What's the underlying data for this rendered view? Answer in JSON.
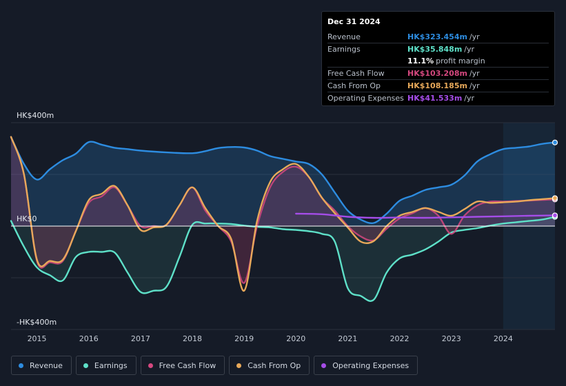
{
  "chart_data": {
    "type": "line",
    "y_unit_labels": {
      "top": "HK$400m",
      "zero": "HK$0",
      "bottom": "-HK$400m"
    },
    "ylim": [
      -400,
      400
    ],
    "xlim": [
      2014.5,
      2025.0
    ],
    "x_ticks": [
      2015,
      2016,
      2017,
      2018,
      2019,
      2020,
      2021,
      2022,
      2023,
      2024
    ],
    "x_tick_labels": [
      "2015",
      "2016",
      "2017",
      "2018",
      "2019",
      "2020",
      "2021",
      "2022",
      "2023",
      "2024"
    ],
    "forecast_start": 2024.0,
    "series": [
      {
        "key": "revenue",
        "name": "Revenue",
        "color": "#2d8ce0",
        "fill": true,
        "points": [
          [
            2014.5,
            345
          ],
          [
            2014.75,
            240
          ],
          [
            2015.0,
            180
          ],
          [
            2015.25,
            220
          ],
          [
            2015.5,
            255
          ],
          [
            2015.75,
            280
          ],
          [
            2016.0,
            325
          ],
          [
            2016.25,
            315
          ],
          [
            2016.5,
            303
          ],
          [
            2016.75,
            298
          ],
          [
            2017.0,
            292
          ],
          [
            2017.5,
            285
          ],
          [
            2018.0,
            282
          ],
          [
            2018.25,
            290
          ],
          [
            2018.5,
            302
          ],
          [
            2018.75,
            306
          ],
          [
            2019.0,
            304
          ],
          [
            2019.25,
            292
          ],
          [
            2019.5,
            271
          ],
          [
            2019.75,
            260
          ],
          [
            2020.0,
            250
          ],
          [
            2020.25,
            240
          ],
          [
            2020.5,
            200
          ],
          [
            2020.75,
            130
          ],
          [
            2021.0,
            60
          ],
          [
            2021.25,
            25
          ],
          [
            2021.5,
            12
          ],
          [
            2021.75,
            48
          ],
          [
            2022.0,
            98
          ],
          [
            2022.25,
            118
          ],
          [
            2022.5,
            140
          ],
          [
            2022.75,
            150
          ],
          [
            2023.0,
            160
          ],
          [
            2023.25,
            195
          ],
          [
            2023.5,
            250
          ],
          [
            2023.75,
            278
          ],
          [
            2024.0,
            298
          ],
          [
            2024.25,
            303
          ],
          [
            2024.5,
            308
          ],
          [
            2024.75,
            318
          ],
          [
            2025.0,
            323.454
          ]
        ]
      },
      {
        "key": "earnings",
        "name": "Earnings",
        "color": "#5ee0c8",
        "fill": true,
        "points": [
          [
            2014.5,
            20
          ],
          [
            2014.75,
            -80
          ],
          [
            2015.0,
            -160
          ],
          [
            2015.25,
            -190
          ],
          [
            2015.5,
            -210
          ],
          [
            2015.75,
            -120
          ],
          [
            2016.0,
            -100
          ],
          [
            2016.25,
            -100
          ],
          [
            2016.5,
            -102
          ],
          [
            2016.75,
            -180
          ],
          [
            2017.0,
            -255
          ],
          [
            2017.25,
            -250
          ],
          [
            2017.5,
            -235
          ],
          [
            2017.75,
            -120
          ],
          [
            2018.0,
            5
          ],
          [
            2018.25,
            10
          ],
          [
            2018.5,
            10
          ],
          [
            2018.75,
            8
          ],
          [
            2019.0,
            2
          ],
          [
            2019.25,
            -3
          ],
          [
            2019.5,
            -5
          ],
          [
            2019.75,
            -12
          ],
          [
            2020.0,
            -15
          ],
          [
            2020.25,
            -20
          ],
          [
            2020.5,
            -30
          ],
          [
            2020.75,
            -60
          ],
          [
            2021.0,
            -240
          ],
          [
            2021.25,
            -270
          ],
          [
            2021.5,
            -285
          ],
          [
            2021.75,
            -180
          ],
          [
            2022.0,
            -125
          ],
          [
            2022.25,
            -110
          ],
          [
            2022.5,
            -90
          ],
          [
            2022.75,
            -60
          ],
          [
            2023.0,
            -25
          ],
          [
            2023.25,
            -15
          ],
          [
            2023.5,
            -8
          ],
          [
            2023.75,
            2
          ],
          [
            2024.0,
            10
          ],
          [
            2024.25,
            15
          ],
          [
            2024.5,
            20
          ],
          [
            2024.75,
            25
          ],
          [
            2025.0,
            35.848
          ]
        ]
      },
      {
        "key": "fcf",
        "name": "Free Cash Flow",
        "color": "#d5487f",
        "fill": true,
        "points": [
          [
            2014.5,
            345
          ],
          [
            2014.75,
            200
          ],
          [
            2015.0,
            -135
          ],
          [
            2015.25,
            -140
          ],
          [
            2015.5,
            -135
          ],
          [
            2015.75,
            -20
          ],
          [
            2016.0,
            90
          ],
          [
            2016.25,
            115
          ],
          [
            2016.5,
            150
          ],
          [
            2016.75,
            80
          ],
          [
            2017.0,
            0
          ],
          [
            2017.25,
            0
          ],
          [
            2017.5,
            5
          ],
          [
            2017.75,
            80
          ],
          [
            2018.0,
            150
          ],
          [
            2018.25,
            60
          ],
          [
            2018.5,
            0
          ],
          [
            2018.75,
            -60
          ],
          [
            2019.0,
            -220
          ],
          [
            2019.25,
            0
          ],
          [
            2019.5,
            150
          ],
          [
            2019.75,
            210
          ],
          [
            2020.0,
            230
          ],
          [
            2020.25,
            190
          ],
          [
            2020.5,
            110
          ],
          [
            2020.75,
            60
          ],
          [
            2021.0,
            0
          ],
          [
            2021.25,
            -40
          ],
          [
            2021.5,
            -55
          ],
          [
            2021.75,
            -10
          ],
          [
            2022.0,
            30
          ],
          [
            2022.25,
            50
          ],
          [
            2022.5,
            70
          ],
          [
            2022.75,
            40
          ],
          [
            2023.0,
            -30
          ],
          [
            2023.25,
            40
          ],
          [
            2023.5,
            80
          ],
          [
            2023.75,
            95
          ],
          [
            2024.0,
            95
          ],
          [
            2024.25,
            97
          ],
          [
            2024.5,
            99
          ],
          [
            2024.75,
            101
          ],
          [
            2025.0,
            103.208
          ]
        ]
      },
      {
        "key": "cfo",
        "name": "Cash From Op",
        "color": "#e8a95a",
        "fill": false,
        "points": [
          [
            2014.5,
            345
          ],
          [
            2014.75,
            200
          ],
          [
            2015.0,
            -130
          ],
          [
            2015.25,
            -135
          ],
          [
            2015.5,
            -130
          ],
          [
            2015.75,
            -20
          ],
          [
            2016.0,
            100
          ],
          [
            2016.25,
            125
          ],
          [
            2016.5,
            155
          ],
          [
            2016.75,
            80
          ],
          [
            2017.0,
            -15
          ],
          [
            2017.25,
            -5
          ],
          [
            2017.5,
            5
          ],
          [
            2017.75,
            80
          ],
          [
            2018.0,
            150
          ],
          [
            2018.25,
            70
          ],
          [
            2018.5,
            0
          ],
          [
            2018.75,
            -50
          ],
          [
            2019.0,
            -250
          ],
          [
            2019.25,
            20
          ],
          [
            2019.5,
            170
          ],
          [
            2019.75,
            220
          ],
          [
            2020.0,
            240
          ],
          [
            2020.25,
            190
          ],
          [
            2020.5,
            110
          ],
          [
            2020.75,
            50
          ],
          [
            2021.0,
            -5
          ],
          [
            2021.25,
            -60
          ],
          [
            2021.5,
            -58
          ],
          [
            2021.75,
            0
          ],
          [
            2022.0,
            40
          ],
          [
            2022.25,
            55
          ],
          [
            2022.5,
            70
          ],
          [
            2022.75,
            55
          ],
          [
            2023.0,
            40
          ],
          [
            2023.25,
            65
          ],
          [
            2023.5,
            95
          ],
          [
            2023.75,
            90
          ],
          [
            2024.0,
            92
          ],
          [
            2024.25,
            95
          ],
          [
            2024.5,
            100
          ],
          [
            2024.75,
            104
          ],
          [
            2025.0,
            108.185
          ]
        ]
      },
      {
        "key": "opex",
        "name": "Operating Expenses",
        "color": "#a54de8",
        "fill": false,
        "points": [
          [
            2020.0,
            48
          ],
          [
            2020.5,
            46
          ],
          [
            2021.0,
            36
          ],
          [
            2021.5,
            32
          ],
          [
            2022.0,
            33
          ],
          [
            2022.5,
            32
          ],
          [
            2023.0,
            34
          ],
          [
            2023.5,
            36
          ],
          [
            2024.0,
            38
          ],
          [
            2024.5,
            40
          ],
          [
            2025.0,
            41.533
          ]
        ]
      }
    ]
  },
  "tooltip": {
    "date": "Dec 31 2024",
    "rows": [
      {
        "label": "Revenue",
        "value": "HK$323.454m",
        "unit": "/yr",
        "color": "#2d8ce0"
      },
      {
        "label": "Earnings",
        "value": "HK$35.848m",
        "unit": "/yr",
        "color": "#5ee0c8"
      },
      {
        "label": "",
        "value": "11.1%",
        "unit": "profit margin",
        "color": "#ffffff"
      },
      {
        "label": "Free Cash Flow",
        "value": "HK$103.208m",
        "unit": "/yr",
        "color": "#d5487f"
      },
      {
        "label": "Cash From Op",
        "value": "HK$108.185m",
        "unit": "/yr",
        "color": "#e8a95a"
      },
      {
        "label": "Operating Expenses",
        "value": "HK$41.533m",
        "unit": "/yr",
        "color": "#a54de8"
      }
    ]
  },
  "legend": [
    {
      "label": "Revenue",
      "color": "#2d8ce0"
    },
    {
      "label": "Earnings",
      "color": "#5ee0c8"
    },
    {
      "label": "Free Cash Flow",
      "color": "#d5487f"
    },
    {
      "label": "Cash From Op",
      "color": "#e8a95a"
    },
    {
      "label": "Operating Expenses",
      "color": "#a54de8"
    }
  ]
}
